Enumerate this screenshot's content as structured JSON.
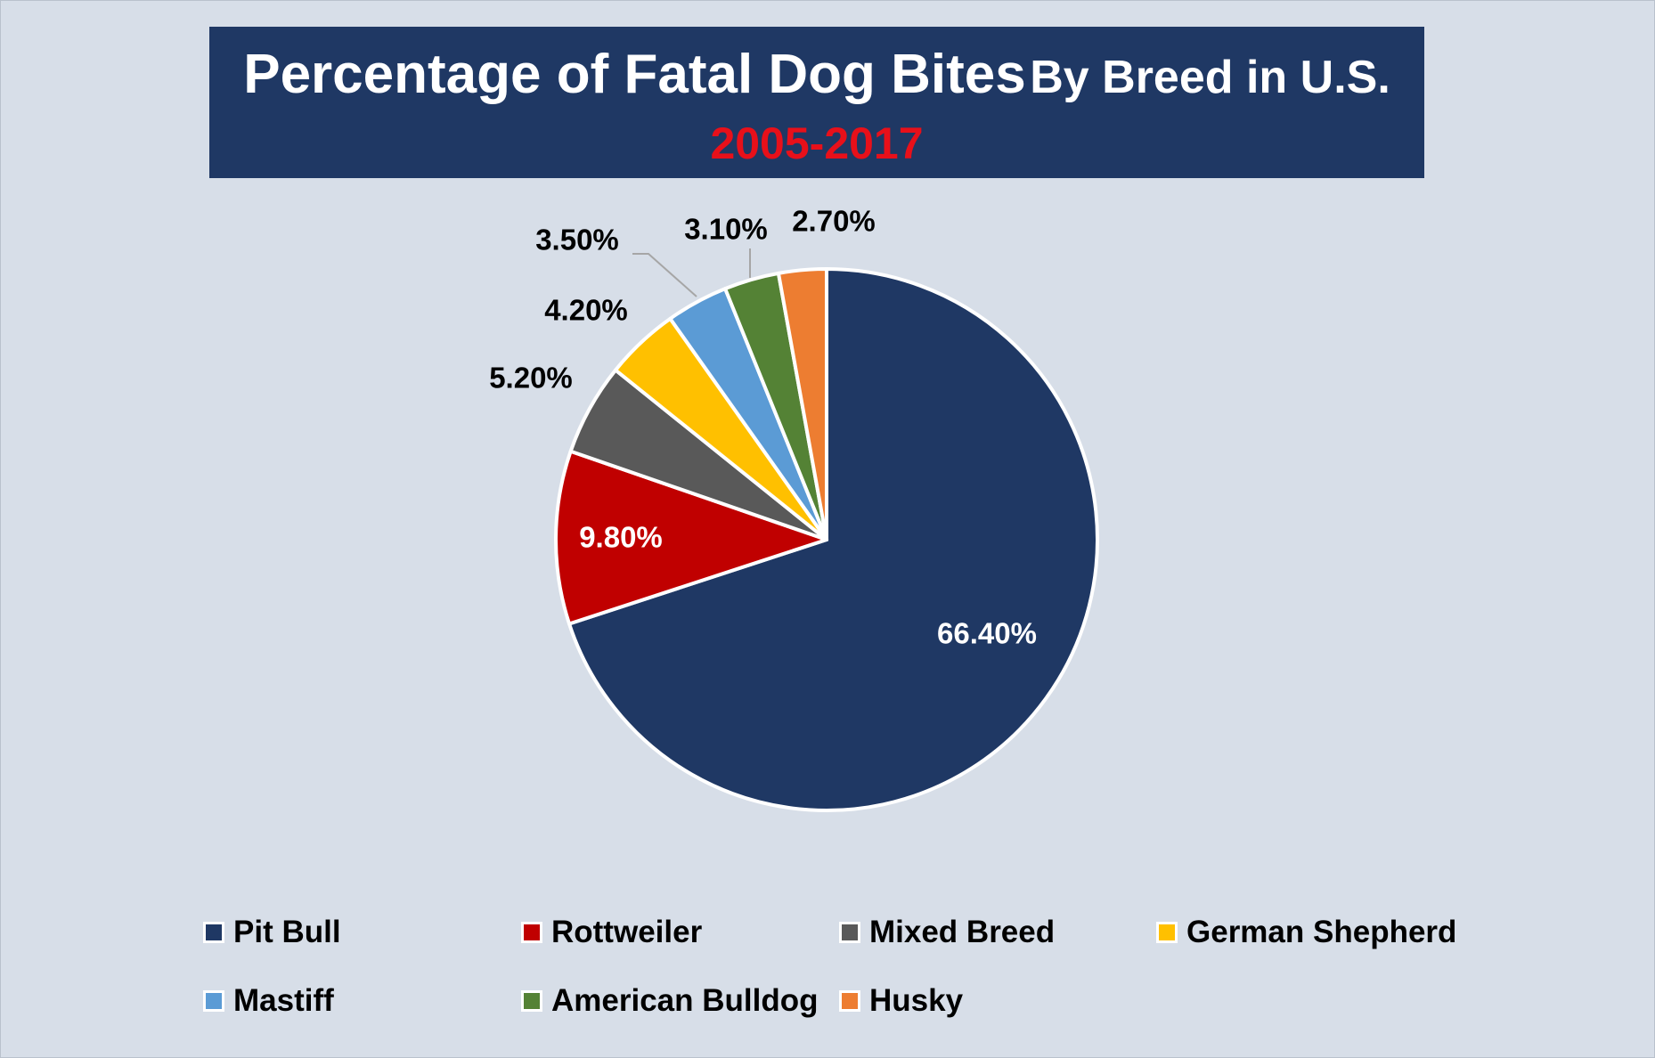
{
  "title": {
    "main": "Percentage of Fatal Dog Bites",
    "rest": "By Breed in U.S.",
    "subtitle": "2005-2017"
  },
  "chart_data": {
    "type": "pie",
    "unit": "%",
    "slices": [
      {
        "name": "Pit Bull",
        "value": 66.4,
        "label": "66.40%",
        "color": "#1f3864",
        "label_color": "#ffffff"
      },
      {
        "name": "Rottweiler",
        "value": 9.8,
        "label": "9.80%",
        "color": "#c00000",
        "label_color": "#ffffff"
      },
      {
        "name": "Mixed Breed",
        "value": 5.2,
        "label": "5.20%",
        "color": "#595959",
        "label_color": "#000000"
      },
      {
        "name": "German Shepherd",
        "value": 4.2,
        "label": "4.20%",
        "color": "#ffc000",
        "label_color": "#000000"
      },
      {
        "name": "Mastiff",
        "value": 3.5,
        "label": "3.50%",
        "color": "#5b9bd5",
        "label_color": "#000000"
      },
      {
        "name": "American Bulldog",
        "value": 3.1,
        "label": "3.10%",
        "color": "#548235",
        "label_color": "#000000"
      },
      {
        "name": "Husky",
        "value": 2.7,
        "label": "2.70%",
        "color": "#ed7d31",
        "label_color": "#000000"
      }
    ],
    "legend": [
      "Pit Bull",
      "Rottweiler",
      "Mixed Breed",
      "German Shepherd",
      "Mastiff",
      "American Bulldog",
      "Husky"
    ],
    "legend_position": "bottom"
  }
}
